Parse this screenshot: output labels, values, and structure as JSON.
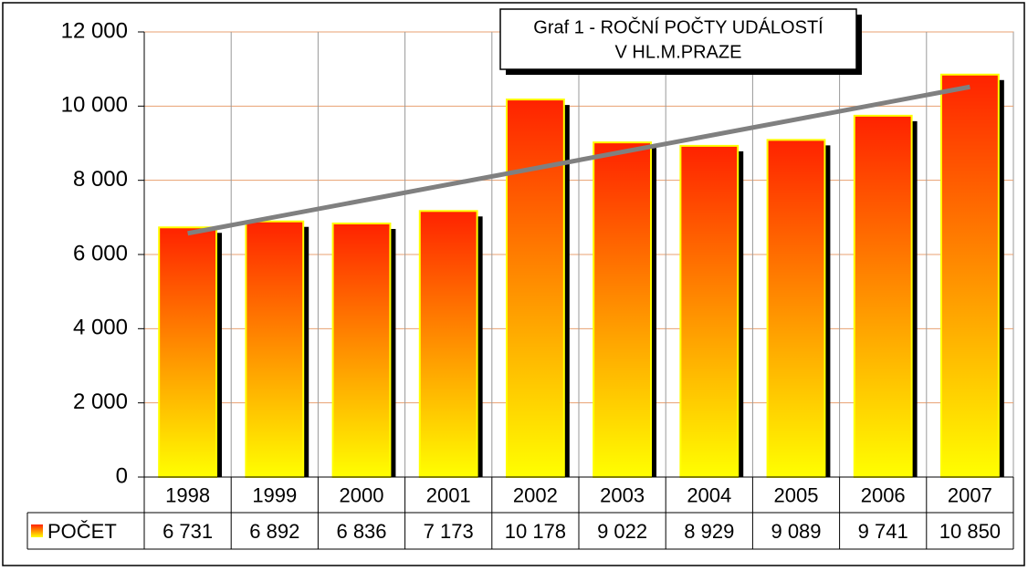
{
  "chart_data": {
    "type": "bar",
    "title": [
      "Graf 1 - ROČNÍ POČTY UDÁLOSTÍ",
      "V HL.M.PRAZE"
    ],
    "categories": [
      "1998",
      "1999",
      "2000",
      "2001",
      "2002",
      "2003",
      "2004",
      "2005",
      "2006",
      "2007"
    ],
    "series": [
      {
        "name": "POČET",
        "color": "#ff2200",
        "gradient_color": "#ffff00",
        "values": [
          6731,
          6892,
          6836,
          7173,
          10178,
          9022,
          8929,
          9089,
          9741,
          10850
        ],
        "value_labels": [
          "6 731",
          "6 892",
          "6 836",
          "7 173",
          "10 178",
          "9 022",
          "8 929",
          "9 089",
          "9 741",
          "10 850"
        ]
      }
    ],
    "ylim": [
      0,
      12000
    ],
    "yticks": [
      0,
      {
        "value": 2000,
        "label": "2 000"
      },
      {
        "value": 4000,
        "label": "4 000"
      },
      {
        "value": 6000,
        "label": "6 000"
      },
      {
        "value": 8000,
        "label": "8 000"
      },
      {
        "value": 10000,
        "label": "10 000"
      },
      {
        "value": 12000,
        "label": "12 000"
      }
    ],
    "grid": true,
    "trendline": true,
    "data_table": true
  }
}
